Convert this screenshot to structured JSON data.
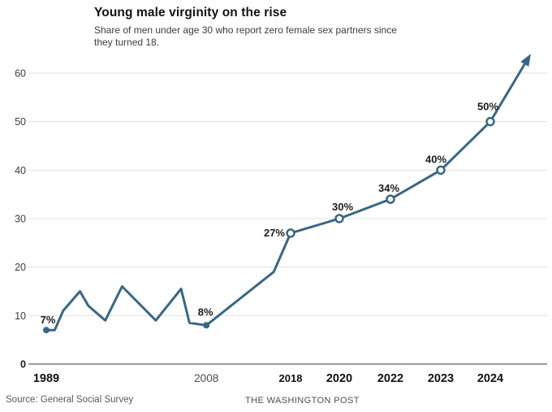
{
  "header": {
    "title": "Young male virginity on the rise",
    "subtitle_line1": "Share of men under age 30 who report zero female sex partners since",
    "subtitle_line2": "they turned 18."
  },
  "footer": {
    "source": "Source: General Social Survey",
    "credit": "THE WASHINGTON POST"
  },
  "chart_data": {
    "type": "line",
    "title": "Young male virginity on the rise",
    "subtitle": "Share of men under age 30 who report zero female sex partners since they turned 18.",
    "xlabel": "",
    "ylabel": "",
    "ylim": [
      0,
      65
    ],
    "yticks": [
      0,
      10,
      20,
      30,
      40,
      50,
      60
    ],
    "grid": "horizontal",
    "legend": "none",
    "line_color": "#3a6783",
    "gridline_color": "#e0e0e0",
    "axis_color": "#9c9c9c",
    "label_color": "#1d1d1d",
    "xticks": [
      {
        "year": 1989,
        "label": "1989",
        "bold": true
      },
      {
        "year": 2008,
        "label": "2008",
        "bold": false
      },
      {
        "year": 2018,
        "label": "2018",
        "bold": true
      },
      {
        "year": 2020,
        "label": "2020",
        "bold": true
      },
      {
        "year": 2022,
        "label": "2022",
        "bold": true
      },
      {
        "year": 2023,
        "label": "2023",
        "bold": true
      },
      {
        "year": 2024,
        "label": "2024",
        "bold": true
      }
    ],
    "series": [
      {
        "name": "Share of men under 30 reporting zero female sex partners (%)",
        "points": [
          {
            "year": 1989,
            "value": 7,
            "label": "7%",
            "marker": "dot"
          },
          {
            "year": 1990,
            "value": 7
          },
          {
            "year": 1991,
            "value": 11
          },
          {
            "year": 1993,
            "value": 15
          },
          {
            "year": 1994,
            "value": 12
          },
          {
            "year": 1996,
            "value": 9
          },
          {
            "year": 1998,
            "value": 16
          },
          {
            "year": 2002,
            "value": 9
          },
          {
            "year": 2005,
            "value": 15.5
          },
          {
            "year": 2006,
            "value": 8.5
          },
          {
            "year": 2008,
            "value": 8,
            "label": "8%",
            "marker": "dot"
          },
          {
            "year": 2016,
            "value": 19
          },
          {
            "year": 2018,
            "value": 27,
            "label": "27%",
            "marker": "open"
          },
          {
            "year": 2020,
            "value": 30,
            "label": "30%",
            "marker": "open"
          },
          {
            "year": 2022,
            "value": 34,
            "label": "34%",
            "marker": "open"
          },
          {
            "year": 2023,
            "value": 40,
            "label": "40%",
            "marker": "open"
          },
          {
            "year": 2024,
            "value": 50,
            "label": "50%",
            "marker": "open"
          }
        ]
      }
    ],
    "trend_arrow": {
      "extends_to_value": 64
    }
  }
}
